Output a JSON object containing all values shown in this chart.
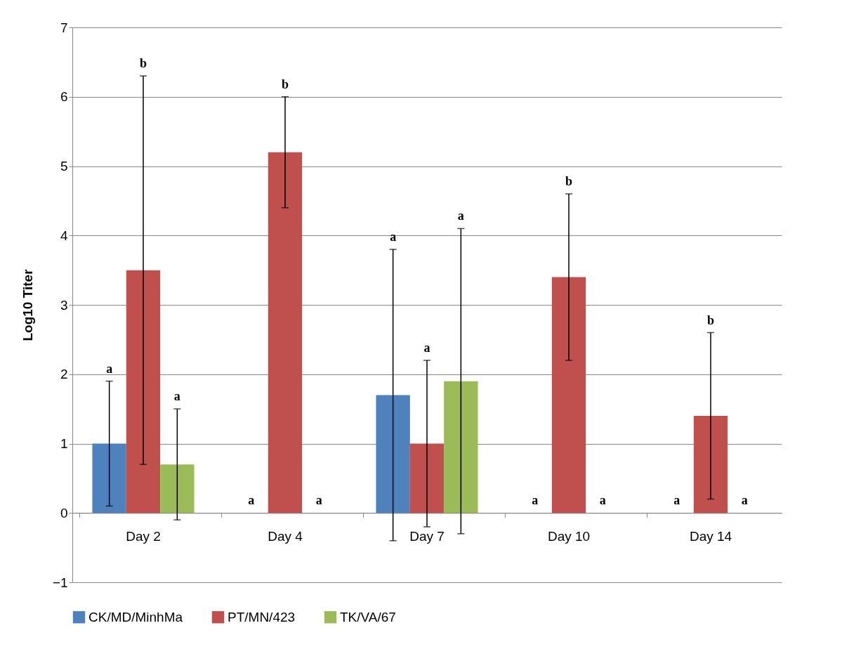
{
  "chart_data": {
    "type": "bar",
    "ylabel": "Log10 Titer",
    "categories": [
      "Day 2",
      "Day 4",
      "Day 7",
      "Day 10",
      "Day 14"
    ],
    "series": [
      {
        "name": "CK/MD/MinhMa",
        "color": "#4f81bd",
        "values": [
          1.0,
          0,
          1.7,
          0,
          0
        ],
        "errors": [
          0.9,
          null,
          2.1,
          null,
          null
        ]
      },
      {
        "name": "PT/MN/423",
        "color": "#c0504d",
        "values": [
          3.5,
          5.2,
          1.0,
          3.4,
          1.4
        ],
        "errors": [
          2.8,
          0.8,
          1.2,
          1.2,
          1.2
        ]
      },
      {
        "name": "TK/VA/67",
        "color": "#9bbb59",
        "values": [
          0.7,
          0,
          1.9,
          0,
          0
        ],
        "errors": [
          0.8,
          null,
          2.2,
          null,
          null
        ]
      }
    ],
    "ylim": [
      -1,
      7
    ],
    "yticks": [
      -1,
      0,
      1,
      2,
      3,
      4,
      5,
      6,
      7
    ],
    "grid": "y",
    "legend": "bottom",
    "annotations": [
      "a",
      "b",
      "a",
      "a",
      "b",
      "a",
      "a",
      "a",
      "a",
      "a",
      "b",
      "a",
      "a",
      "b",
      "a"
    ]
  }
}
